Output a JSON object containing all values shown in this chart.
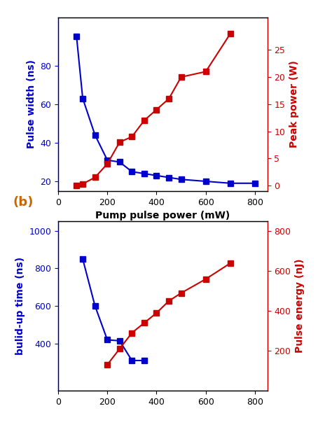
{
  "panel_a": {
    "blue_x": [
      75,
      100,
      150,
      200,
      250,
      300,
      350,
      400,
      450,
      500,
      600,
      700,
      800
    ],
    "blue_y": [
      95,
      63,
      44,
      31,
      30,
      25,
      24,
      23,
      22,
      21,
      20,
      19,
      19
    ],
    "red_x": [
      75,
      100,
      150,
      200,
      250,
      300,
      350,
      400,
      450,
      500,
      600,
      700
    ],
    "red_y": [
      0,
      0.3,
      1.5,
      4,
      8,
      9,
      12,
      14,
      16,
      20,
      21,
      28
    ],
    "xlabel": "Pump pulse power (mW)",
    "ylabel_left": "Pulse width (ns)",
    "ylabel_right": "Peak power (W)",
    "xlim": [
      0,
      850
    ],
    "ylim_left": [
      15,
      105
    ],
    "ylim_right": [
      -1,
      31
    ],
    "xticks": [
      0,
      200,
      400,
      600,
      800
    ],
    "yticks_left": [
      20,
      40,
      60,
      80
    ],
    "yticks_right": [
      0,
      5,
      10,
      15,
      20,
      25
    ]
  },
  "panel_b": {
    "blue_x": [
      100,
      150,
      200,
      250,
      300,
      350
    ],
    "blue_y": [
      850,
      600,
      420,
      415,
      310,
      310
    ],
    "red_x": [
      200,
      250,
      300,
      350,
      400,
      450,
      500,
      600,
      700
    ],
    "red_y": [
      130,
      210,
      290,
      340,
      390,
      450,
      490,
      560,
      640
    ],
    "ylabel_left": "bulid-up time (ns)",
    "ylabel_right": "Pulse energy (nJ)",
    "xlim": [
      0,
      850
    ],
    "ylim_left": [
      150,
      1050
    ],
    "ylim_right": [
      0,
      850
    ],
    "xticks": [
      0,
      200,
      400,
      600,
      800
    ],
    "yticks_left": [
      400,
      600,
      800,
      1000
    ],
    "yticks_right": [
      200,
      400,
      600,
      800
    ]
  },
  "blue_color": "#0000cc",
  "red_color": "#cc0000",
  "label_b": "(b)",
  "label_b_color": "#cc6600",
  "marker": "s",
  "markersize": 6,
  "linewidth": 1.5,
  "font_size_label": 10,
  "font_size_tick": 9,
  "font_size_b_label": 13
}
